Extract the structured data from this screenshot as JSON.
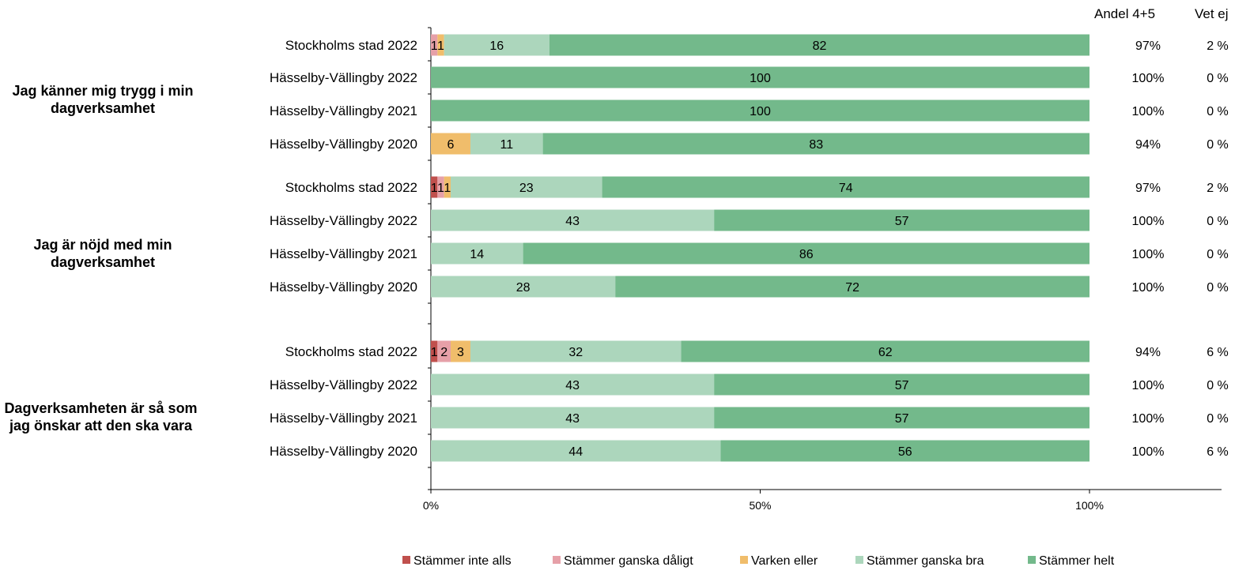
{
  "header": {
    "andel": "Andel 4+5",
    "vetej": "Vet ej"
  },
  "legend": [
    {
      "label": "Stämmer inte alls",
      "color": "#c0504d"
    },
    {
      "label": "Stämmer ganska dåligt",
      "color": "#e6a0a8"
    },
    {
      "label": "Varken eller",
      "color": "#f0bd6b"
    },
    {
      "label": "Stämmer ganska bra",
      "color": "#acd6bc"
    },
    {
      "label": "Stämmer helt",
      "color": "#73b98b"
    }
  ],
  "chart_data": {
    "type": "bar",
    "orientation": "horizontal",
    "stacked": true,
    "xlim": [
      0,
      100
    ],
    "xticks": [
      "0%",
      "50%",
      "100%"
    ],
    "series_names": [
      "Stämmer inte alls",
      "Stämmer ganska dåligt",
      "Varken eller",
      "Stämmer ganska bra",
      "Stämmer helt"
    ],
    "groups": [
      {
        "label": "Jag känner mig trygg i min dagverksamhet",
        "rows": [
          {
            "name": "Stockholms stad 2022",
            "values": [
              0,
              1,
              1,
              16,
              82
            ],
            "andel": "97%",
            "vetej": "2 %"
          },
          {
            "name": "Hässelby-Vällingby 2022",
            "values": [
              0,
              0,
              0,
              0,
              100
            ],
            "andel": "100%",
            "vetej": "0 %"
          },
          {
            "name": "Hässelby-Vällingby 2021",
            "values": [
              0,
              0,
              0,
              0,
              100
            ],
            "andel": "100%",
            "vetej": "0 %"
          },
          {
            "name": "Hässelby-Vällingby 2020",
            "values": [
              0,
              0,
              6,
              11,
              83
            ],
            "andel": "94%",
            "vetej": "0 %"
          }
        ]
      },
      {
        "label": "Jag är nöjd med min dagverksamhet",
        "rows": [
          {
            "name": "Stockholms stad 2022",
            "values": [
              1,
              1,
              1,
              23,
              74
            ],
            "andel": "97%",
            "vetej": "2 %"
          },
          {
            "name": "Hässelby-Vällingby 2022",
            "values": [
              0,
              0,
              0,
              43,
              57
            ],
            "andel": "100%",
            "vetej": "0 %"
          },
          {
            "name": "Hässelby-Vällingby 2021",
            "values": [
              0,
              0,
              0,
              14,
              86
            ],
            "andel": "100%",
            "vetej": "0 %"
          },
          {
            "name": "Hässelby-Vällingby 2020",
            "values": [
              0,
              0,
              0,
              28,
              72
            ],
            "andel": "100%",
            "vetej": "0 %"
          }
        ]
      },
      {
        "label": "Dagverksamheten är så som jag önskar att den ska vara",
        "rows": [
          {
            "name": "Stockholms stad 2022",
            "values": [
              1,
              2,
              3,
              32,
              62
            ],
            "andel": "94%",
            "vetej": "6 %"
          },
          {
            "name": "Hässelby-Vällingby 2022",
            "values": [
              0,
              0,
              0,
              43,
              57
            ],
            "andel": "100%",
            "vetej": "0 %"
          },
          {
            "name": "Hässelby-Vällingby 2021",
            "values": [
              0,
              0,
              0,
              43,
              57
            ],
            "andel": "100%",
            "vetej": "0 %"
          },
          {
            "name": "Hässelby-Vällingby 2020",
            "values": [
              0,
              0,
              0,
              44,
              56
            ],
            "andel": "100%",
            "vetej": "6 %"
          }
        ]
      }
    ]
  }
}
